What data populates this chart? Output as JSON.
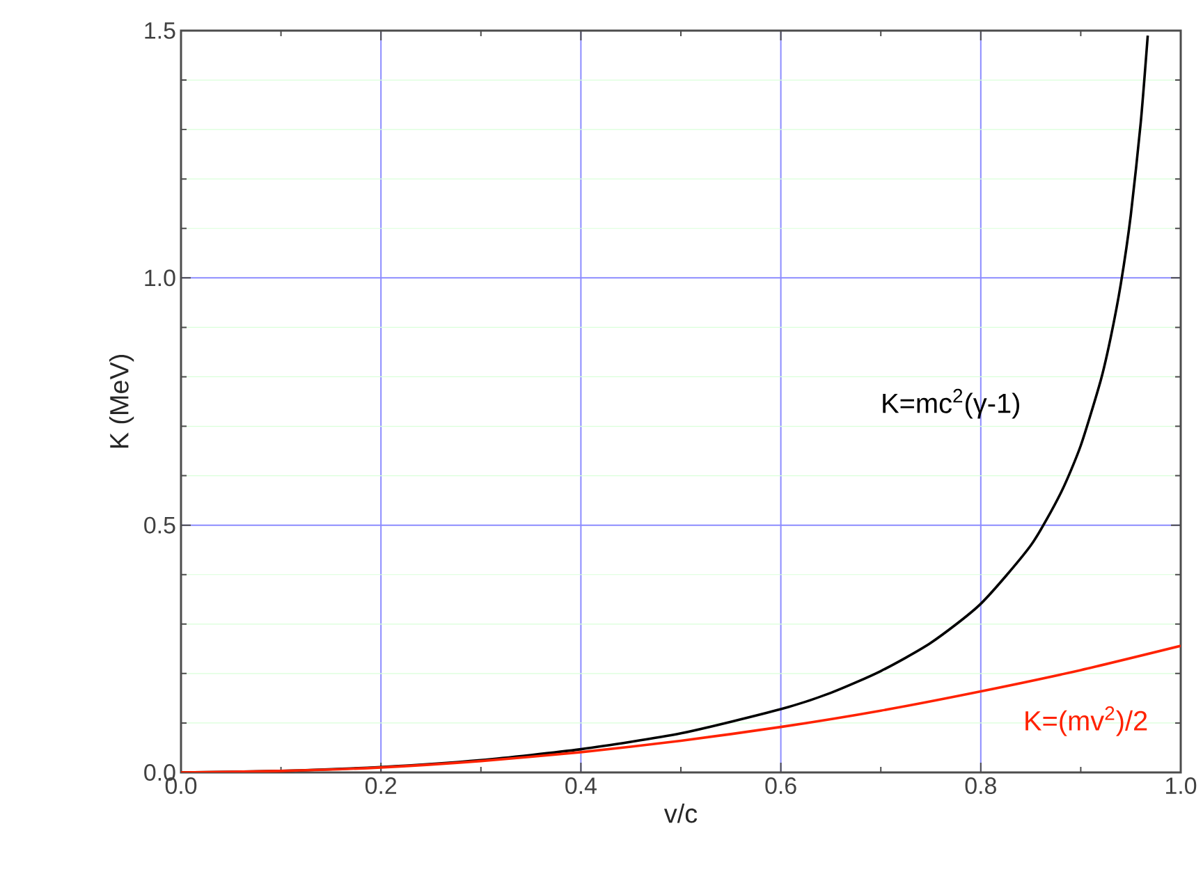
{
  "chart_data": {
    "type": "line",
    "xlabel": "v/c",
    "ylabel": "K (MeV)",
    "xlim": [
      0,
      1
    ],
    "ylim": [
      0,
      1.5
    ],
    "xticks": [
      {
        "value": 0,
        "label": "0.0"
      },
      0.2,
      0.4,
      0.6,
      0.8,
      {
        "value": 1,
        "label": "1.0"
      }
    ],
    "yticks": [
      {
        "value": 0,
        "label": "0.0"
      },
      0.5,
      {
        "value": 1,
        "label": "1.0"
      },
      1.5
    ],
    "grid": true,
    "marker": "none",
    "line_style": "solid",
    "series": [
      {
        "color": "#000000",
        "x": [
          0,
          0.1,
          0.2,
          0.3,
          0.4,
          0.5,
          0.6,
          0.65,
          0.7,
          0.75,
          0.8,
          0.85,
          0.88,
          0.9,
          0.92,
          0.93,
          0.94,
          0.95,
          0.96,
          0.967
        ],
        "values": [
          0,
          0.003,
          0.011,
          0.025,
          0.047,
          0.079,
          0.128,
          0.161,
          0.205,
          0.262,
          0.341,
          0.459,
          0.565,
          0.661,
          0.793,
          0.88,
          0.987,
          1.126,
          1.314,
          1.49
        ]
      },
      {
        "color": "#ff2200",
        "x": [
          0,
          0.1,
          0.2,
          0.3,
          0.4,
          0.5,
          0.6,
          0.7,
          0.8,
          0.9,
          1.0
        ],
        "values": [
          0,
          0.003,
          0.01,
          0.023,
          0.041,
          0.064,
          0.092,
          0.125,
          0.164,
          0.207,
          0.256
        ]
      }
    ],
    "annotations": [
      "K=mc$^{2}$(γ-1)",
      "K=(mv$^{2}$)/2"
    ]
  }
}
